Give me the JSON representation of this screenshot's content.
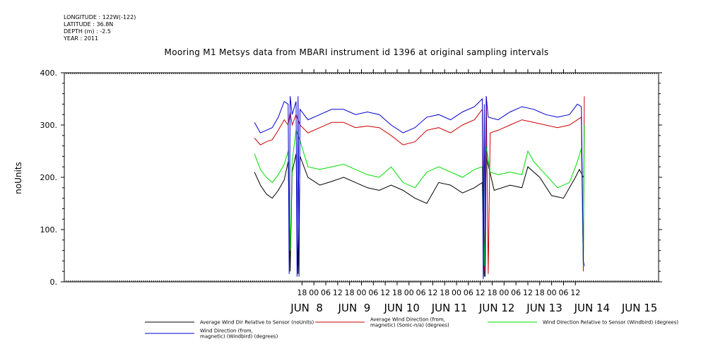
{
  "header": {
    "longitude": "LONGITUDE : 122W(-122)",
    "latitude": "LATITUDE : 36.8N",
    "depth": "DEPTH (m) : -2.5",
    "year": "YEAR : 2011"
  },
  "chart_data": {
    "type": "line",
    "title": "Mooring M1 Metsys data from MBARI instrument id 1396 at original sampling intervals",
    "ylabel": "noUnits",
    "xlabel": "",
    "ylim": [
      0,
      400
    ],
    "yticks": [
      0,
      100,
      200,
      300,
      400
    ],
    "ytick_labels": [
      "0.",
      "100.",
      "200.",
      "300.",
      "400."
    ],
    "xlim_hours": [
      -9,
      3.5
    ],
    "xticks": [
      {
        "h": -8,
        "label": "18"
      },
      {
        "h": -7.5,
        "label": "00"
      },
      {
        "h": -7,
        "label": "06"
      },
      {
        "h": -6.5,
        "label": "12"
      },
      {
        "h": -6,
        "label": "18"
      },
      {
        "h": -5.5,
        "label": "00"
      },
      {
        "h": -5,
        "label": "06"
      },
      {
        "h": -4.5,
        "label": "12"
      },
      {
        "h": -4,
        "label": "18"
      },
      {
        "h": -3.5,
        "label": "00"
      },
      {
        "h": -3,
        "label": "06"
      },
      {
        "h": -2.5,
        "label": "12"
      },
      {
        "h": -2,
        "label": "18"
      },
      {
        "h": -1.5,
        "label": "00"
      },
      {
        "h": -1,
        "label": "06"
      },
      {
        "h": -0.5,
        "label": "12"
      },
      {
        "h": 0,
        "label": "18"
      },
      {
        "h": 0.5,
        "label": "00"
      },
      {
        "h": 1,
        "label": "06"
      },
      {
        "h": 1.5,
        "label": "12"
      },
      {
        "h": 2,
        "label": "18"
      },
      {
        "h": 2.5,
        "label": "00"
      },
      {
        "h": 3,
        "label": "06"
      },
      {
        "h": 3.5,
        "label": "12"
      }
    ],
    "date_labels": [
      "JUN  8",
      "JUN  9",
      "JUN 10",
      "JUN 11",
      "JUN 12",
      "JUN 13",
      "JUN 14",
      "JUN 15"
    ],
    "series": [
      {
        "name": "Average Wind Dir Relative to Sensor (noUnits)",
        "color": "#000000",
        "points": [
          [
            "2011-06-07T18:00",
            210
          ],
          [
            "2011-06-07T21:00",
            185
          ],
          [
            "2011-06-08T00:00",
            168
          ],
          [
            "2011-06-08T03:00",
            160
          ],
          [
            "2011-06-08T06:00",
            175
          ],
          [
            "2011-06-08T09:00",
            195
          ],
          [
            "2011-06-08T11:00",
            230
          ],
          [
            "2011-06-08T12:00",
            20
          ],
          [
            "2011-06-08T13:00",
            210
          ],
          [
            "2011-06-08T15:00",
            245
          ],
          [
            "2011-06-08T16:00",
            15
          ],
          [
            "2011-06-08T17:00",
            240
          ],
          [
            "2011-06-08T21:00",
            200
          ],
          [
            "2011-06-09T03:00",
            185
          ],
          [
            "2011-06-09T09:00",
            192
          ],
          [
            "2011-06-09T15:00",
            200
          ],
          [
            "2011-06-09T21:00",
            190
          ],
          [
            "2011-06-10T03:00",
            180
          ],
          [
            "2011-06-10T09:00",
            175
          ],
          [
            "2011-06-10T15:00",
            185
          ],
          [
            "2011-06-10T21:00",
            175
          ],
          [
            "2011-06-11T03:00",
            160
          ],
          [
            "2011-06-11T09:00",
            150
          ],
          [
            "2011-06-11T15:00",
            190
          ],
          [
            "2011-06-11T21:00",
            185
          ],
          [
            "2011-06-12T03:00",
            170
          ],
          [
            "2011-06-12T09:00",
            180
          ],
          [
            "2011-06-12T13:00",
            190
          ],
          [
            "2011-06-12T14:00",
            10
          ],
          [
            "2011-06-12T15:00",
            240
          ],
          [
            "2011-06-12T19:00",
            175
          ],
          [
            "2011-06-13T03:00",
            185
          ],
          [
            "2011-06-13T09:00",
            180
          ],
          [
            "2011-06-13T12:00",
            220
          ],
          [
            "2011-06-13T18:00",
            200
          ],
          [
            "2011-06-14T00:00",
            165
          ],
          [
            "2011-06-14T06:00",
            160
          ],
          [
            "2011-06-14T12:00",
            200
          ],
          [
            "2011-06-14T14:00",
            215
          ],
          [
            "2011-06-14T16:00",
            200
          ]
        ]
      },
      {
        "name": "Average Wind Direction (from, magnetic) (Sonic-n/a) (degrees)",
        "color": "#cc0000",
        "points": [
          [
            "2011-06-07T18:00",
            275
          ],
          [
            "2011-06-07T21:00",
            262
          ],
          [
            "2011-06-08T00:00",
            268
          ],
          [
            "2011-06-08T03:00",
            272
          ],
          [
            "2011-06-08T06:00",
            290
          ],
          [
            "2011-06-08T09:00",
            310
          ],
          [
            "2011-06-08T11:00",
            300
          ],
          [
            "2011-06-08T12:00",
            325
          ],
          [
            "2011-06-08T13:00",
            300
          ],
          [
            "2011-06-08T15:00",
            320
          ],
          [
            "2011-06-08T17:00",
            300
          ],
          [
            "2011-06-08T21:00",
            285
          ],
          [
            "2011-06-09T03:00",
            295
          ],
          [
            "2011-06-09T09:00",
            305
          ],
          [
            "2011-06-09T15:00",
            305
          ],
          [
            "2011-06-09T21:00",
            295
          ],
          [
            "2011-06-10T03:00",
            298
          ],
          [
            "2011-06-10T09:00",
            295
          ],
          [
            "2011-06-10T15:00",
            280
          ],
          [
            "2011-06-10T21:00",
            262
          ],
          [
            "2011-06-11T03:00",
            268
          ],
          [
            "2011-06-11T09:00",
            290
          ],
          [
            "2011-06-11T15:00",
            295
          ],
          [
            "2011-06-11T21:00",
            285
          ],
          [
            "2011-06-12T03:00",
            300
          ],
          [
            "2011-06-12T09:00",
            310
          ],
          [
            "2011-06-12T13:00",
            330
          ],
          [
            "2011-06-12T14:00",
            20
          ],
          [
            "2011-06-12T15:00",
            355
          ],
          [
            "2011-06-12T16:00",
            15
          ],
          [
            "2011-06-12T17:00",
            285
          ],
          [
            "2011-06-12T21:00",
            290
          ],
          [
            "2011-06-13T03:00",
            300
          ],
          [
            "2011-06-13T09:00",
            310
          ],
          [
            "2011-06-13T15:00",
            305
          ],
          [
            "2011-06-13T21:00",
            300
          ],
          [
            "2011-06-14T03:00",
            295
          ],
          [
            "2011-06-14T09:00",
            300
          ],
          [
            "2011-06-14T13:00",
            310
          ],
          [
            "2011-06-14T15:00",
            315
          ],
          [
            "2011-06-14T16:00",
            20
          ],
          [
            "2011-06-14T16:30",
            355
          ]
        ]
      },
      {
        "name": "Wind Direction Relative to Sensor (Windbird) (degrees)",
        "color": "#00dd00",
        "points": [
          [
            "2011-06-07T18:00",
            245
          ],
          [
            "2011-06-07T21:00",
            215
          ],
          [
            "2011-06-08T00:00",
            200
          ],
          [
            "2011-06-08T03:00",
            190
          ],
          [
            "2011-06-08T06:00",
            205
          ],
          [
            "2011-06-08T09:00",
            225
          ],
          [
            "2011-06-08T11:00",
            250
          ],
          [
            "2011-06-08T12:00",
            60
          ],
          [
            "2011-06-08T13:00",
            230
          ],
          [
            "2011-06-08T15:00",
            290
          ],
          [
            "2011-06-08T17:00",
            270
          ],
          [
            "2011-06-08T21:00",
            220
          ],
          [
            "2011-06-09T03:00",
            215
          ],
          [
            "2011-06-09T09:00",
            220
          ],
          [
            "2011-06-09T15:00",
            225
          ],
          [
            "2011-06-09T21:00",
            215
          ],
          [
            "2011-06-10T03:00",
            205
          ],
          [
            "2011-06-10T09:00",
            200
          ],
          [
            "2011-06-10T15:00",
            220
          ],
          [
            "2011-06-10T21:00",
            190
          ],
          [
            "2011-06-11T03:00",
            180
          ],
          [
            "2011-06-11T09:00",
            210
          ],
          [
            "2011-06-11T15:00",
            220
          ],
          [
            "2011-06-11T21:00",
            210
          ],
          [
            "2011-06-12T03:00",
            200
          ],
          [
            "2011-06-12T09:00",
            215
          ],
          [
            "2011-06-12T13:00",
            220
          ],
          [
            "2011-06-12T14:00",
            30
          ],
          [
            "2011-06-12T15:00",
            260
          ],
          [
            "2011-06-12T17:00",
            210
          ],
          [
            "2011-06-12T21:00",
            205
          ],
          [
            "2011-06-13T03:00",
            210
          ],
          [
            "2011-06-13T09:00",
            205
          ],
          [
            "2011-06-13T12:00",
            250
          ],
          [
            "2011-06-13T15:00",
            230
          ],
          [
            "2011-06-13T21:00",
            205
          ],
          [
            "2011-06-14T03:00",
            180
          ],
          [
            "2011-06-14T09:00",
            190
          ],
          [
            "2011-06-14T13:00",
            230
          ],
          [
            "2011-06-14T15:00",
            255
          ],
          [
            "2011-06-14T16:00",
            30
          ],
          [
            "2011-06-14T16:30",
            300
          ]
        ]
      },
      {
        "name": "Wind Direction (from, magnetic) (Windbird) (degrees)",
        "color": "#0000cc",
        "points": [
          [
            "2011-06-07T18:00",
            305
          ],
          [
            "2011-06-07T21:00",
            285
          ],
          [
            "2011-06-08T00:00",
            290
          ],
          [
            "2011-06-08T03:00",
            295
          ],
          [
            "2011-06-08T06:00",
            315
          ],
          [
            "2011-06-08T09:00",
            345
          ],
          [
            "2011-06-08T11:00",
            340
          ],
          [
            "2011-06-08T11:30",
            15
          ],
          [
            "2011-06-08T12:00",
            355
          ],
          [
            "2011-06-08T13:00",
            320
          ],
          [
            "2011-06-08T15:00",
            345
          ],
          [
            "2011-06-08T15:30",
            10
          ],
          [
            "2011-06-08T16:00",
            355
          ],
          [
            "2011-06-08T16:30",
            10
          ],
          [
            "2011-06-08T17:00",
            330
          ],
          [
            "2011-06-08T21:00",
            310
          ],
          [
            "2011-06-09T03:00",
            320
          ],
          [
            "2011-06-09T09:00",
            330
          ],
          [
            "2011-06-09T15:00",
            330
          ],
          [
            "2011-06-09T21:00",
            320
          ],
          [
            "2011-06-10T03:00",
            325
          ],
          [
            "2011-06-10T09:00",
            320
          ],
          [
            "2011-06-10T15:00",
            300
          ],
          [
            "2011-06-10T21:00",
            285
          ],
          [
            "2011-06-11T03:00",
            295
          ],
          [
            "2011-06-11T09:00",
            315
          ],
          [
            "2011-06-11T15:00",
            320
          ],
          [
            "2011-06-11T21:00",
            310
          ],
          [
            "2011-06-12T03:00",
            325
          ],
          [
            "2011-06-12T09:00",
            335
          ],
          [
            "2011-06-12T13:00",
            350
          ],
          [
            "2011-06-12T13:30",
            5
          ],
          [
            "2011-06-12T14:00",
            340
          ],
          [
            "2011-06-12T14:30",
            10
          ],
          [
            "2011-06-12T15:00",
            355
          ],
          [
            "2011-06-12T16:00",
            315
          ],
          [
            "2011-06-12T21:00",
            310
          ],
          [
            "2011-06-13T03:00",
            325
          ],
          [
            "2011-06-13T09:00",
            335
          ],
          [
            "2011-06-13T15:00",
            330
          ],
          [
            "2011-06-13T21:00",
            320
          ],
          [
            "2011-06-14T03:00",
            315
          ],
          [
            "2011-06-14T09:00",
            320
          ],
          [
            "2011-06-14T13:00",
            340
          ],
          [
            "2011-06-14T15:00",
            335
          ],
          [
            "2011-06-14T16:00",
            40
          ],
          [
            "2011-06-14T16:30",
            30
          ]
        ]
      }
    ],
    "legend": {
      "entries": [
        {
          "color": "#000000",
          "label_lines": [
            "Average Wind Dir Relative to Sensor (noUnits)"
          ]
        },
        {
          "color": "#cc0000",
          "label_lines": [
            "Average Wind Direction (from,",
            "magnetic) (Sonic-n/a) (degrees)"
          ]
        },
        {
          "color": "#00dd00",
          "label_lines": [
            "Wind Direction Relative to Sensor (Windbird) (degrees)"
          ]
        },
        {
          "color": "#0000cc",
          "label_lines": [
            "Wind Direction (from,",
            "magnetic) (Windbird) (degrees)"
          ]
        }
      ]
    }
  }
}
